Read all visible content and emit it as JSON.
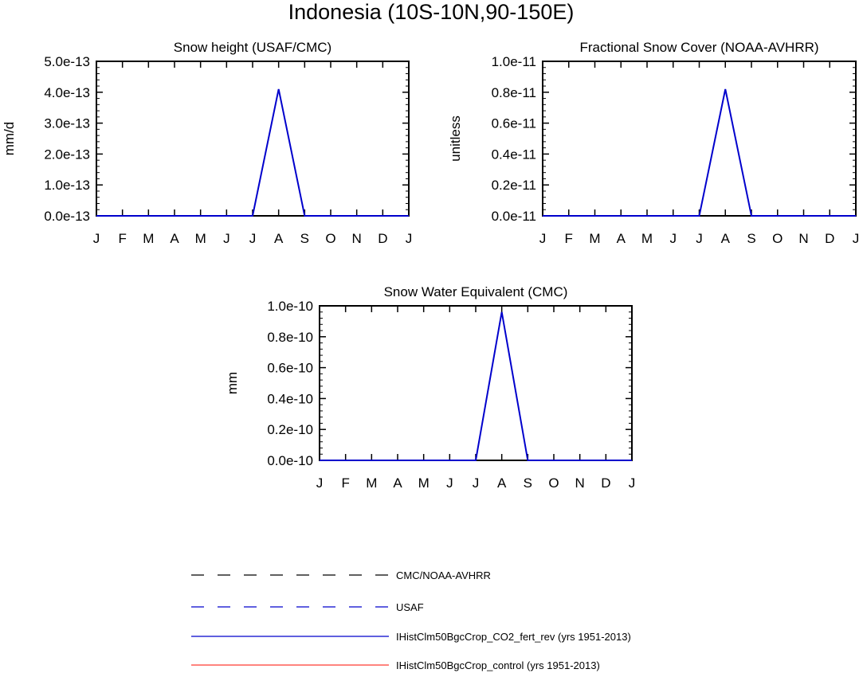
{
  "figure_title": "Indonesia (10S-10N,90-150E)",
  "colors": {
    "cmc_noaa": "#000000",
    "usaf": "#0000cc",
    "co2_fert_rev": "#0000cc",
    "control": "#ff3b30"
  },
  "chart_data": [
    {
      "type": "line",
      "title": "Snow height (USAF/CMC)",
      "ylabel": "mm/d",
      "xlabel": "",
      "categories": [
        "J",
        "F",
        "M",
        "A",
        "M",
        "J",
        "J",
        "A",
        "S",
        "O",
        "N",
        "D",
        "J"
      ],
      "yticks": [
        "0.0e-13",
        "1.0e-13",
        "2.0e-13",
        "3.0e-13",
        "4.0e-13",
        "5.0e-13"
      ],
      "ylim": [
        0,
        5e-13
      ],
      "series": [
        {
          "name": "IHistClm50BgcCrop_CO2_fert_rev (yrs 1951-2013)",
          "values": [
            0,
            0,
            0,
            0,
            0,
            0,
            0,
            4.1e-13,
            0,
            0,
            0,
            0,
            0
          ]
        }
      ]
    },
    {
      "type": "line",
      "title": "Fractional Snow Cover (NOAA-AVHRR)",
      "ylabel": "unitless",
      "xlabel": "",
      "categories": [
        "J",
        "F",
        "M",
        "A",
        "M",
        "J",
        "J",
        "A",
        "S",
        "O",
        "N",
        "D",
        "J"
      ],
      "yticks": [
        "0.0e-11",
        "0.2e-11",
        "0.4e-11",
        "0.6e-11",
        "0.8e-11",
        "1.0e-11"
      ],
      "ylim": [
        0,
        1e-11
      ],
      "series": [
        {
          "name": "IHistClm50BgcCrop_CO2_fert_rev (yrs 1951-2013)",
          "values": [
            0,
            0,
            0,
            0,
            0,
            0,
            0,
            8.2e-12,
            0,
            0,
            0,
            0,
            0
          ]
        }
      ]
    },
    {
      "type": "line",
      "title": "Snow Water Equivalent (CMC)",
      "ylabel": "mm",
      "xlabel": "",
      "categories": [
        "J",
        "F",
        "M",
        "A",
        "M",
        "J",
        "J",
        "A",
        "S",
        "O",
        "N",
        "D",
        "J"
      ],
      "yticks": [
        "0.0e-10",
        "0.2e-10",
        "0.4e-10",
        "0.6e-10",
        "0.8e-10",
        "1.0e-10"
      ],
      "ylim": [
        0,
        1e-10
      ],
      "series": [
        {
          "name": "IHistClm50BgcCrop_CO2_fert_rev (yrs 1951-2013)",
          "values": [
            0,
            0,
            0,
            0,
            0,
            0,
            0,
            9.6e-11,
            0,
            0,
            0,
            0,
            0
          ]
        }
      ]
    }
  ],
  "legend": {
    "placement": "bottom-center",
    "entries": [
      {
        "label": "CMC/NOAA-AVHRR",
        "style": "dashed",
        "color_key": "cmc_noaa"
      },
      {
        "label": "USAF",
        "style": "dashed",
        "color_key": "usaf"
      },
      {
        "label": "IHistClm50BgcCrop_CO2_fert_rev (yrs 1951-2013)",
        "style": "solid",
        "color_key": "co2_fert_rev"
      },
      {
        "label": "IHistClm50BgcCrop_control (yrs 1951-2013)",
        "style": "solid",
        "color_key": "control"
      }
    ]
  }
}
